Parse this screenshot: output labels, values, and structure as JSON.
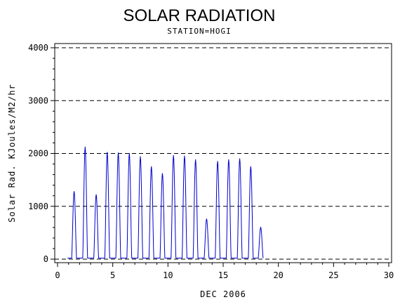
{
  "chart_data": {
    "type": "line",
    "title": "SOLAR RADIATION",
    "subtitle": "STATION=HOGI",
    "xlabel": "DEC 2006",
    "ylabel": "Solar Rad. KJoules/M2/hr",
    "xlim": [
      0,
      30
    ],
    "ylim": [
      0,
      4000
    ],
    "x_ticks": [
      0,
      5,
      10,
      15,
      20,
      25,
      30
    ],
    "y_ticks": [
      0,
      1000,
      2000,
      3000,
      4000
    ],
    "grid": "horizontal-dashed",
    "line_color": "#0000cc",
    "daily_peaks": [
      {
        "day": 1.5,
        "peak": 1280
      },
      {
        "day": 2.5,
        "peak": 2120
      },
      {
        "day": 3.5,
        "peak": 1220
      },
      {
        "day": 4.5,
        "peak": 2020
      },
      {
        "day": 5.5,
        "peak": 2010
      },
      {
        "day": 6.5,
        "peak": 2000
      },
      {
        "day": 7.5,
        "peak": 1940
      },
      {
        "day": 8.5,
        "peak": 1750
      },
      {
        "day": 9.5,
        "peak": 1620
      },
      {
        "day": 10.5,
        "peak": 1960
      },
      {
        "day": 11.5,
        "peak": 1950
      },
      {
        "day": 12.5,
        "peak": 1880
      },
      {
        "day": 13.5,
        "peak": 760
      },
      {
        "day": 14.5,
        "peak": 1850
      },
      {
        "day": 15.5,
        "peak": 1880
      },
      {
        "day": 16.5,
        "peak": 1900
      },
      {
        "day": 17.5,
        "peak": 1750
      },
      {
        "day": 18.4,
        "peak": 600
      }
    ]
  }
}
